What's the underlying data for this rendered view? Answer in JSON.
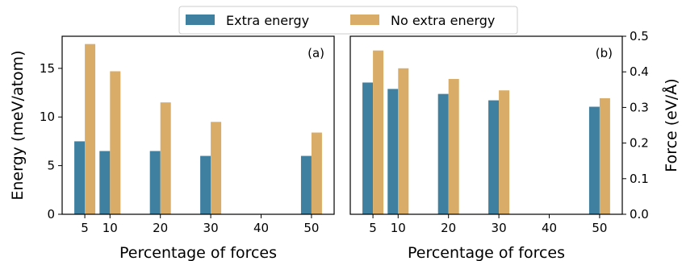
{
  "legend": {
    "items": [
      {
        "label": "Extra energy",
        "color": "#3f7fa0"
      },
      {
        "label": "No extra energy",
        "color": "#d9ad67"
      }
    ]
  },
  "chart_data": [
    {
      "type": "bar",
      "panel_label": "(a)",
      "x": [
        5,
        10,
        20,
        30,
        50
      ],
      "xticks": [
        5,
        10,
        20,
        30,
        40,
        50
      ],
      "xlim": [
        0.5,
        54.5
      ],
      "xlabel": "Percentage of forces",
      "ylabel": "Energy (meV/atom)",
      "ylim": [
        0,
        18.3
      ],
      "yticks": [
        0,
        5,
        10,
        15
      ],
      "y_axis_side": "left",
      "series": [
        {
          "name": "Extra energy",
          "color": "#3f7fa0",
          "values": [
            7.5,
            6.5,
            6.5,
            6.0,
            6.0
          ]
        },
        {
          "name": "No extra energy",
          "color": "#d9ad67",
          "values": [
            17.5,
            14.7,
            11.5,
            9.5,
            8.4
          ]
        }
      ]
    },
    {
      "type": "bar",
      "panel_label": "(b)",
      "x": [
        5,
        10,
        20,
        30,
        50
      ],
      "xticks": [
        5,
        10,
        20,
        30,
        40,
        50
      ],
      "xlim": [
        0.5,
        54.5
      ],
      "xlabel": "Percentage of forces",
      "ylabel": "Force (eV/Å)",
      "ylim": [
        0,
        0.5
      ],
      "yticks": [
        "0.0",
        "0.1",
        "0.2",
        "0.3",
        "0.4",
        "0.5"
      ],
      "y_axis_side": "right",
      "series": [
        {
          "name": "Extra energy",
          "color": "#3f7fa0",
          "values": [
            0.37,
            0.352,
            0.338,
            0.32,
            0.302
          ]
        },
        {
          "name": "No extra energy",
          "color": "#d9ad67",
          "values": [
            0.46,
            0.41,
            0.38,
            0.348,
            0.326
          ]
        }
      ]
    }
  ]
}
